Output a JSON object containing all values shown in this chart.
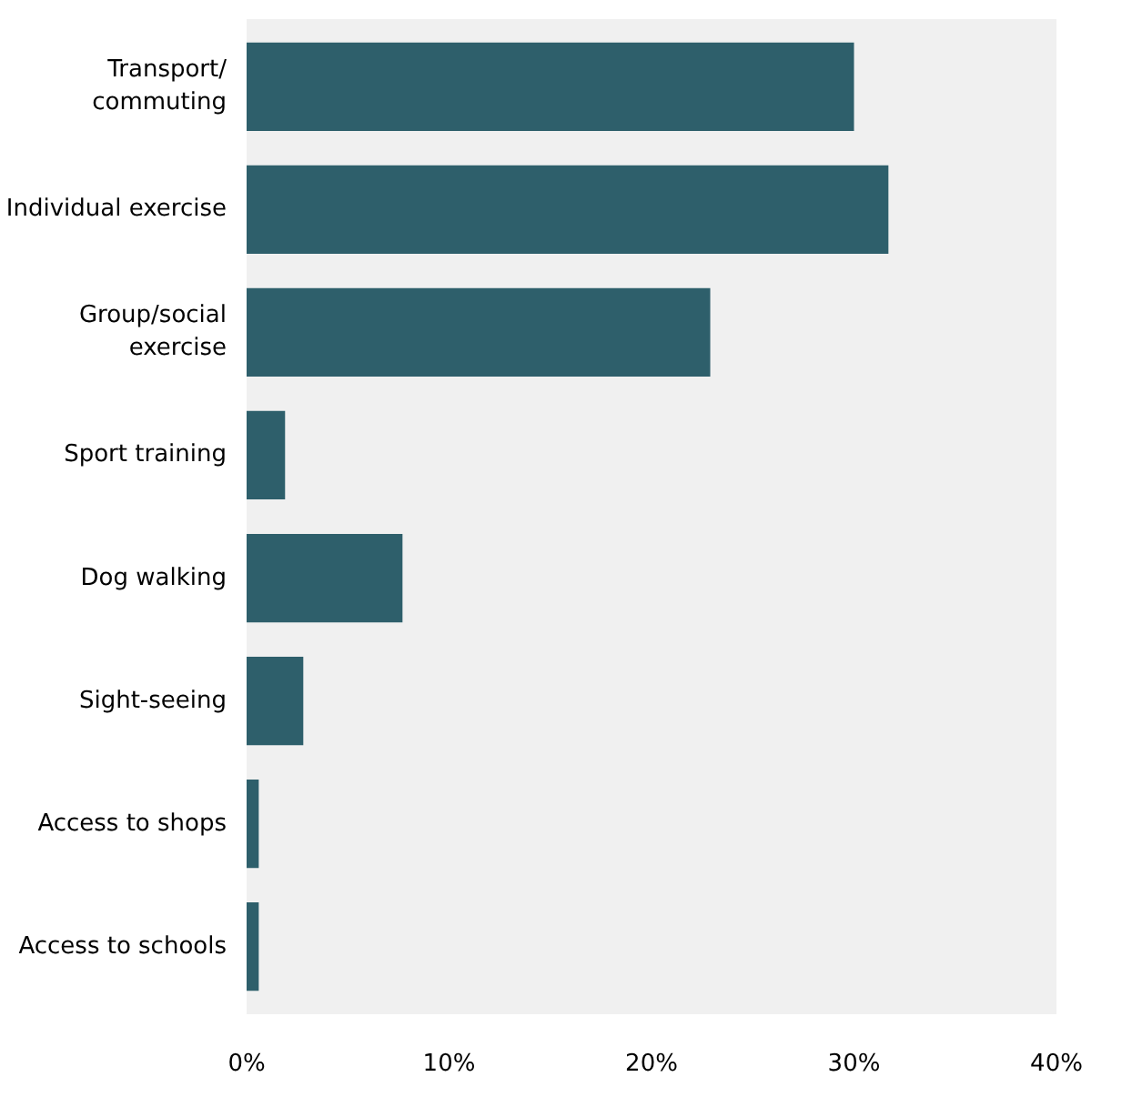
{
  "chart_data": {
    "type": "bar",
    "orientation": "horizontal",
    "categories": [
      "Transport/\ncommuting",
      "Individual exercise",
      "Group/social\nexercise",
      "Sport training",
      "Dog walking",
      "Sight-seeing",
      "Access to shops",
      "Access to schools"
    ],
    "values": [
      30,
      31.7,
      22.9,
      1.9,
      7.7,
      2.8,
      0.6,
      0.6
    ],
    "color": "#2e5f6b",
    "xlim": [
      0,
      40
    ],
    "xticks": [
      {
        "value": 0,
        "label": "0%"
      },
      {
        "value": 10,
        "label": "10%"
      },
      {
        "value": 20,
        "label": "20%"
      },
      {
        "value": 30,
        "label": "30%"
      },
      {
        "value": 40,
        "label": "40%"
      }
    ],
    "grid": false
  }
}
